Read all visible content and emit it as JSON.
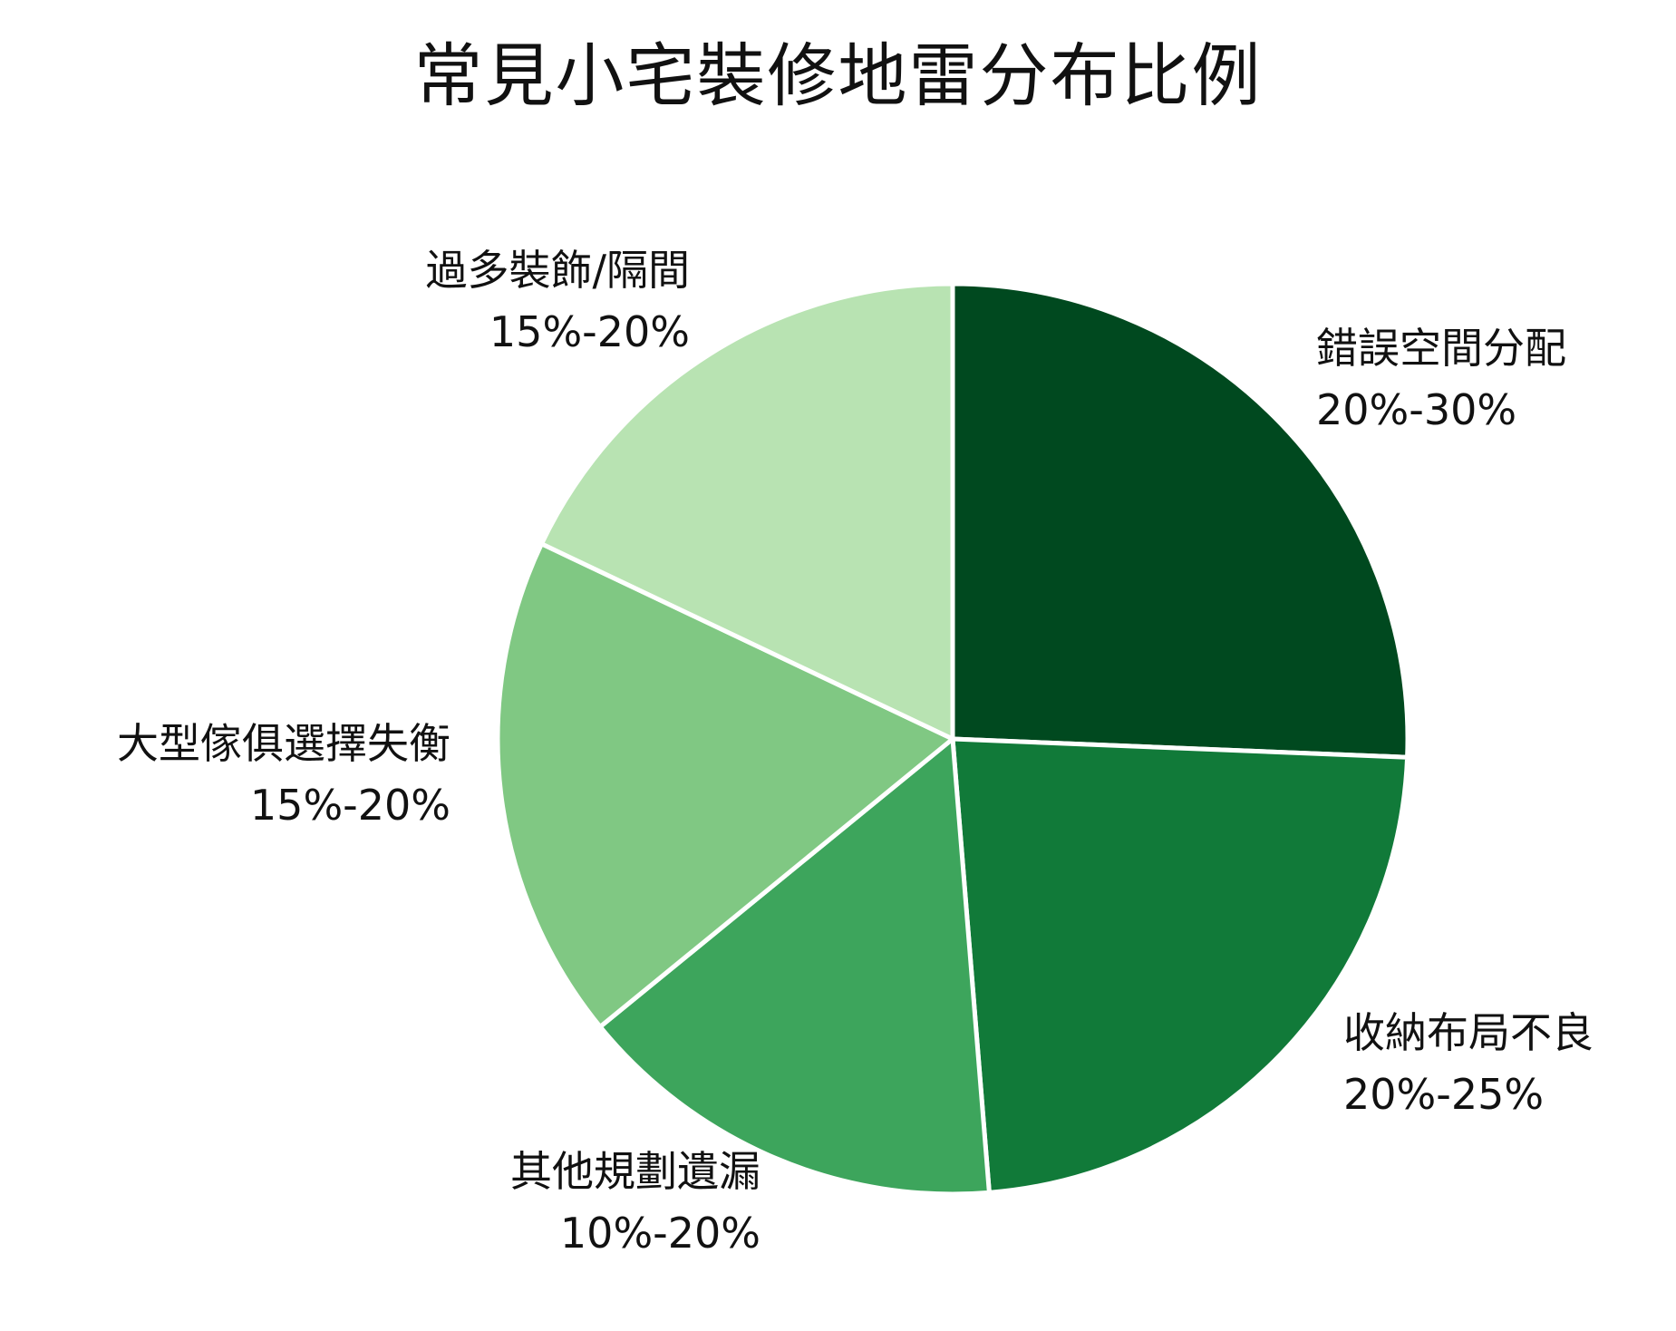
{
  "chart_data": {
    "type": "pie",
    "title": "常見小宅裝修地雷分布比例",
    "start_angle_deg": 0,
    "direction": "clockwise",
    "slice_border_color": "#ffffff",
    "slices": [
      {
        "label": "錯誤空間分配",
        "range": "20%-30%",
        "value": 25,
        "color": "#00491f"
      },
      {
        "label": "收納布局不良",
        "range": "20%-25%",
        "value": 22.5,
        "color": "#117a39"
      },
      {
        "label": "其他規劃遺漏",
        "range": "10%-20%",
        "value": 15,
        "color": "#3da55c"
      },
      {
        "label": "大型傢俱選擇失衡",
        "range": "15%-20%",
        "value": 17.5,
        "color": "#80c883"
      },
      {
        "label": "過多裝飾/隔間",
        "range": "15%-20%",
        "value": 17.5,
        "color": "#b8e3b2"
      }
    ],
    "legend": "none (labels placed outside slices)"
  },
  "labels": {
    "s0": {
      "name": "錯誤空間分配",
      "range": "20%-30%"
    },
    "s1": {
      "name": "收納布局不良",
      "range": "20%-25%"
    },
    "s2": {
      "name": "其他規劃遺漏",
      "range": "10%-20%"
    },
    "s3": {
      "name": "大型傢俱選擇失衡",
      "range": "15%-20%"
    },
    "s4": {
      "name": "過多裝飾/隔間",
      "range": "15%-20%"
    }
  }
}
